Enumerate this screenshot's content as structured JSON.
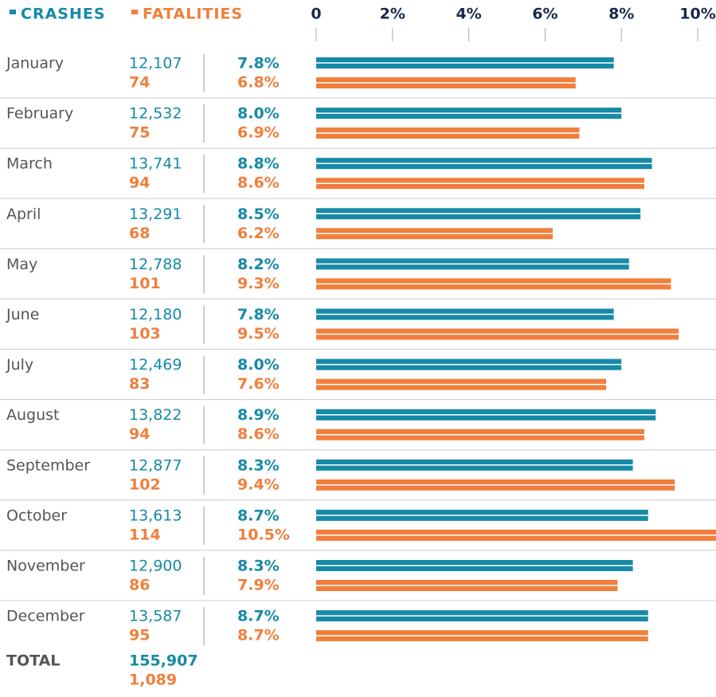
{
  "chart_data": {
    "type": "bar",
    "orientation": "horizontal",
    "categories": [
      "January",
      "February",
      "March",
      "April",
      "May",
      "June",
      "July",
      "August",
      "September",
      "October",
      "November",
      "December"
    ],
    "series": [
      {
        "name": "CRASHES",
        "color": "#168aa6",
        "counts": [
          "12,107",
          "12,532",
          "13,741",
          "13,291",
          "12,788",
          "12,180",
          "12,469",
          "13,822",
          "12,877",
          "13,613",
          "12,900",
          "13,587"
        ],
        "values": [
          7.8,
          8.0,
          8.8,
          8.5,
          8.2,
          7.8,
          8.0,
          8.9,
          8.3,
          8.7,
          8.3,
          8.7
        ],
        "value_labels": [
          "7.8%",
          "8.0%",
          "8.8%",
          "8.5%",
          "8.2%",
          "7.8%",
          "8.0%",
          "8.9%",
          "8.3%",
          "8.7%",
          "8.3%",
          "8.7%"
        ],
        "total": "155,907"
      },
      {
        "name": "FATALITIES",
        "color": "#f07f3c",
        "counts": [
          "74",
          "75",
          "94",
          "68",
          "101",
          "103",
          "83",
          "94",
          "102",
          "114",
          "86",
          "95"
        ],
        "values": [
          6.8,
          6.9,
          8.6,
          6.2,
          9.3,
          9.5,
          7.6,
          8.6,
          9.4,
          10.5,
          7.9,
          8.7
        ],
        "value_labels": [
          "6.8%",
          "6.9%",
          "8.6%",
          "6.2%",
          "9.3%",
          "9.5%",
          "7.6%",
          "8.6%",
          "9.4%",
          "10.5%",
          "7.9%",
          "8.7%"
        ],
        "total": "1,089"
      }
    ],
    "total_label": "TOTAL",
    "xlim": [
      0,
      10
    ],
    "xticks": [
      0,
      {
        "value": 2,
        "label": "2%"
      },
      {
        "value": 4,
        "label": "4%"
      },
      {
        "value": 6,
        "label": "6%"
      },
      {
        "value": 8,
        "label": "8%"
      },
      {
        "value": 10,
        "label": "10%"
      }
    ]
  }
}
